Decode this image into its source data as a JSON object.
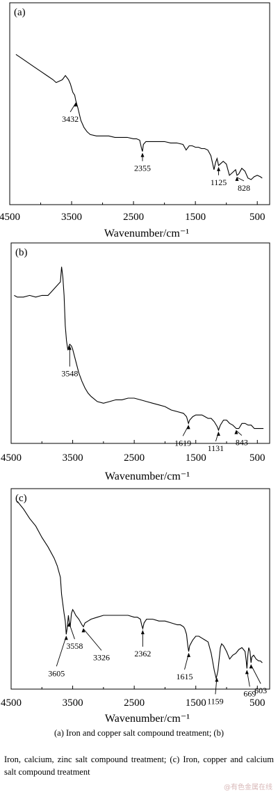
{
  "chart_data": [
    {
      "type": "line",
      "panel_label": "(a)",
      "xlabel": "Wavenumber/cm⁻¹",
      "xlim": [
        4500,
        300
      ],
      "x_ticks": [
        4500,
        3500,
        2500,
        1500,
        500
      ],
      "y_axis_labeled": false,
      "grid": false,
      "series": [
        {
          "x": [
            4400,
            4300,
            4200,
            4100,
            4000,
            3900,
            3800,
            3750,
            3700,
            3650,
            3600,
            3550,
            3520,
            3480,
            3450,
            3432,
            3400,
            3350,
            3300,
            3250,
            3200,
            3100,
            3000,
            2900,
            2800,
            2700,
            2600,
            2500,
            2450,
            2400,
            2370,
            2355,
            2340,
            2300,
            2200,
            2100,
            2000,
            1900,
            1800,
            1700,
            1650,
            1600,
            1550,
            1500,
            1450,
            1400,
            1350,
            1300,
            1250,
            1200,
            1175,
            1150,
            1125,
            1100,
            1050,
            1000,
            950,
            900,
            850,
            828,
            800,
            750,
            700,
            650,
            600,
            550,
            500,
            450,
            420
          ],
          "y": [
            0.91,
            0.88,
            0.85,
            0.82,
            0.79,
            0.76,
            0.73,
            0.71,
            0.72,
            0.73,
            0.76,
            0.73,
            0.7,
            0.64,
            0.62,
            0.58,
            0.53,
            0.44,
            0.39,
            0.36,
            0.34,
            0.33,
            0.33,
            0.33,
            0.32,
            0.32,
            0.32,
            0.31,
            0.31,
            0.3,
            0.24,
            0.22,
            0.27,
            0.29,
            0.29,
            0.29,
            0.29,
            0.28,
            0.28,
            0.27,
            0.23,
            0.26,
            0.26,
            0.25,
            0.25,
            0.24,
            0.24,
            0.23,
            0.19,
            0.09,
            0.14,
            0.17,
            0.12,
            0.13,
            0.15,
            0.13,
            0.05,
            0.07,
            0.09,
            0.05,
            0.06,
            0.1,
            0.08,
            0.03,
            0.02,
            0.04,
            0.05,
            0.04,
            0.03
          ]
        }
      ],
      "annotations": [
        {
          "label": "3432",
          "x": 3432
        },
        {
          "label": "2355",
          "x": 2355
        },
        {
          "label": "1125",
          "x": 1125
        },
        {
          "label": "828",
          "x": 828
        }
      ]
    },
    {
      "type": "line",
      "panel_label": "(b)",
      "xlabel": "Wavenumber/cm⁻¹",
      "xlim": [
        4500,
        300
      ],
      "x_ticks": [
        4500,
        3500,
        2500,
        1500,
        500
      ],
      "y_axis_labeled": false,
      "grid": false,
      "series": [
        {
          "x": [
            4450,
            4400,
            4300,
            4200,
            4100,
            4000,
            3900,
            3850,
            3800,
            3750,
            3700,
            3680,
            3660,
            3640,
            3620,
            3600,
            3580,
            3560,
            3548,
            3520,
            3500,
            3450,
            3400,
            3350,
            3300,
            3250,
            3200,
            3100,
            3000,
            2900,
            2800,
            2700,
            2600,
            2500,
            2400,
            2300,
            2200,
            2100,
            2000,
            1900,
            1800,
            1700,
            1650,
            1619,
            1600,
            1550,
            1500,
            1450,
            1400,
            1350,
            1300,
            1250,
            1200,
            1150,
            1131,
            1100,
            1050,
            1000,
            950,
            900,
            843,
            800,
            750,
            700,
            650,
            600,
            550,
            500,
            450,
            400
          ],
          "y": [
            0.8,
            0.79,
            0.79,
            0.8,
            0.79,
            0.8,
            0.8,
            0.82,
            0.84,
            0.86,
            0.88,
            0.97,
            0.91,
            0.8,
            0.62,
            0.53,
            0.48,
            0.5,
            0.51,
            0.5,
            0.48,
            0.41,
            0.34,
            0.29,
            0.25,
            0.22,
            0.2,
            0.17,
            0.16,
            0.17,
            0.18,
            0.18,
            0.19,
            0.19,
            0.18,
            0.17,
            0.16,
            0.15,
            0.14,
            0.12,
            0.11,
            0.1,
            0.08,
            0.04,
            0.06,
            0.08,
            0.09,
            0.09,
            0.09,
            0.08,
            0.07,
            0.07,
            0.05,
            0.02,
            0.0,
            0.03,
            0.06,
            0.06,
            0.04,
            0.03,
            0.01,
            0.01,
            0.04,
            0.04,
            0.03,
            0.03,
            0.01,
            0.01,
            0.01,
            0.01
          ]
        }
      ],
      "annotations": [
        {
          "label": "3548",
          "x": 3548
        },
        {
          "label": "1619",
          "x": 1619
        },
        {
          "label": "1131",
          "x": 1131
        },
        {
          "label": "843",
          "x": 843
        }
      ]
    },
    {
      "type": "line",
      "panel_label": "(c)",
      "xlabel": "Wavenumber/cm⁻¹",
      "xlim": [
        4500,
        300
      ],
      "x_ticks": [
        4500,
        3500,
        2500,
        1500,
        500
      ],
      "y_axis_labeled": false,
      "grid": false,
      "series": [
        {
          "x": [
            4400,
            4300,
            4200,
            4100,
            4000,
            3900,
            3800,
            3750,
            3700,
            3680,
            3640,
            3620,
            3605,
            3590,
            3570,
            3558,
            3540,
            3520,
            3500,
            3480,
            3450,
            3400,
            3350,
            3326,
            3300,
            3250,
            3200,
            3100,
            3000,
            2900,
            2800,
            2700,
            2600,
            2500,
            2450,
            2400,
            2380,
            2362,
            2340,
            2300,
            2200,
            2100,
            2000,
            1900,
            1800,
            1750,
            1700,
            1680,
            1650,
            1630,
            1615,
            1600,
            1550,
            1500,
            1450,
            1400,
            1350,
            1300,
            1250,
            1200,
            1170,
            1159,
            1140,
            1100,
            1080,
            1050,
            1000,
            950,
            900,
            850,
            800,
            750,
            700,
            680,
            669,
            655,
            640,
            620,
            603,
            590,
            560,
            520,
            480,
            450,
            420
          ],
          "y": [
            0.97,
            0.93,
            0.88,
            0.84,
            0.78,
            0.73,
            0.67,
            0.63,
            0.57,
            0.48,
            0.38,
            0.34,
            0.27,
            0.3,
            0.37,
            0.34,
            0.31,
            0.38,
            0.4,
            0.39,
            0.37,
            0.35,
            0.32,
            0.31,
            0.33,
            0.34,
            0.35,
            0.36,
            0.37,
            0.37,
            0.37,
            0.37,
            0.37,
            0.36,
            0.36,
            0.35,
            0.32,
            0.3,
            0.33,
            0.35,
            0.35,
            0.34,
            0.34,
            0.33,
            0.32,
            0.32,
            0.31,
            0.3,
            0.27,
            0.21,
            0.18,
            0.21,
            0.24,
            0.26,
            0.26,
            0.25,
            0.24,
            0.23,
            0.17,
            0.08,
            0.04,
            0.05,
            0.08,
            0.2,
            0.22,
            0.21,
            0.18,
            0.14,
            0.16,
            0.17,
            0.19,
            0.2,
            0.18,
            0.13,
            0.09,
            0.16,
            0.2,
            0.18,
            0.12,
            0.15,
            0.16,
            0.14,
            0.13,
            0.13,
            0.12
          ]
        }
      ],
      "annotations": [
        {
          "label": "3605",
          "x": 3605
        },
        {
          "label": "3558",
          "x": 3558
        },
        {
          "label": "3326",
          "x": 3326
        },
        {
          "label": "2362",
          "x": 2362
        },
        {
          "label": "1615",
          "x": 1615
        },
        {
          "label": "1159",
          "x": 1159
        },
        {
          "label": "669",
          "x": 669
        },
        {
          "label": "603",
          "x": 603
        }
      ]
    }
  ],
  "captions": {
    "line1": "(a) Iron and copper salt compound treatment; (b)",
    "line2": "Iron, calcium, zinc salt compound treatment; (c) Iron, copper and calcium salt compound treatment"
  },
  "watermark": "@有色金属在线"
}
